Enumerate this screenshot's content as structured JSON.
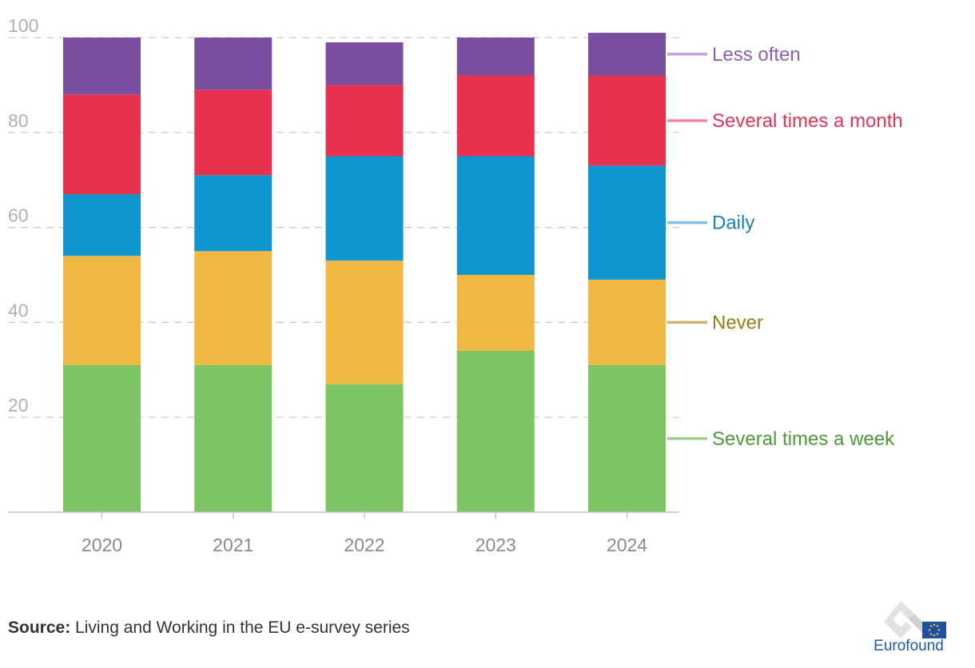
{
  "chart_data": {
    "type": "bar",
    "stacked": true,
    "categories": [
      "2020",
      "2021",
      "2022",
      "2023",
      "2024"
    ],
    "yticks": [
      20,
      40,
      60,
      80,
      100
    ],
    "ylim": [
      0,
      100
    ],
    "grid": true,
    "legend_placement": "right",
    "series": [
      {
        "name": "Several times a week",
        "color": "#7dc462",
        "label_color": "#4e9a3a",
        "line_color": "#9ccf8a",
        "values": [
          31,
          31,
          27,
          34,
          31
        ]
      },
      {
        "name": "Never",
        "color": "#f0b742",
        "label_color": "#9a7b1c",
        "line_color": "#cdb273",
        "values": [
          23,
          24,
          26,
          16,
          18
        ]
      },
      {
        "name": "Daily",
        "color": "#0f96d0",
        "label_color": "#1a7fb8",
        "line_color": "#7fbfe0",
        "values": [
          13,
          16,
          22,
          25,
          24
        ]
      },
      {
        "name": "Several times a month",
        "color": "#e8304f",
        "label_color": "#e03655",
        "line_color": "#ef8aa0",
        "values": [
          21,
          18,
          15,
          17,
          19
        ]
      },
      {
        "name": "Less often",
        "color": "#7b4fa0",
        "label_color": "#8b5fb0",
        "line_color": "#c1a6d6",
        "values": [
          12,
          11,
          9,
          8,
          9
        ]
      }
    ]
  },
  "source": {
    "label": "Source:",
    "text": " Living and Working in the EU e-survey series"
  },
  "logo": {
    "name": "Eurofound",
    "icon": "eurofound-logo-icon"
  }
}
